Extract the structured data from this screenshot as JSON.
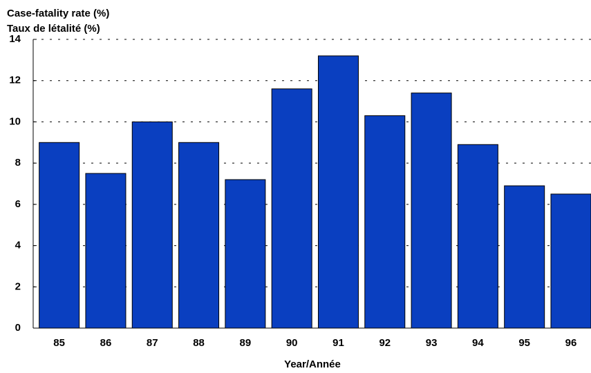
{
  "chart_data": {
    "type": "bar",
    "title": "Case-fatality rate (%)",
    "subtitle": "Taux de létalité (%)",
    "xlabel": "Year/Année",
    "categories": [
      "85",
      "86",
      "87",
      "88",
      "89",
      "90",
      "91",
      "92",
      "93",
      "94",
      "95",
      "96"
    ],
    "values": [
      9.0,
      7.5,
      10.0,
      9.0,
      7.2,
      11.6,
      13.2,
      10.3,
      11.4,
      8.9,
      6.9,
      6.5
    ],
    "color": "#0a3fc0",
    "ylim": [
      0,
      14
    ],
    "yticks": [
      0,
      2,
      4,
      6,
      8,
      10,
      12,
      14
    ],
    "grid": true
  }
}
